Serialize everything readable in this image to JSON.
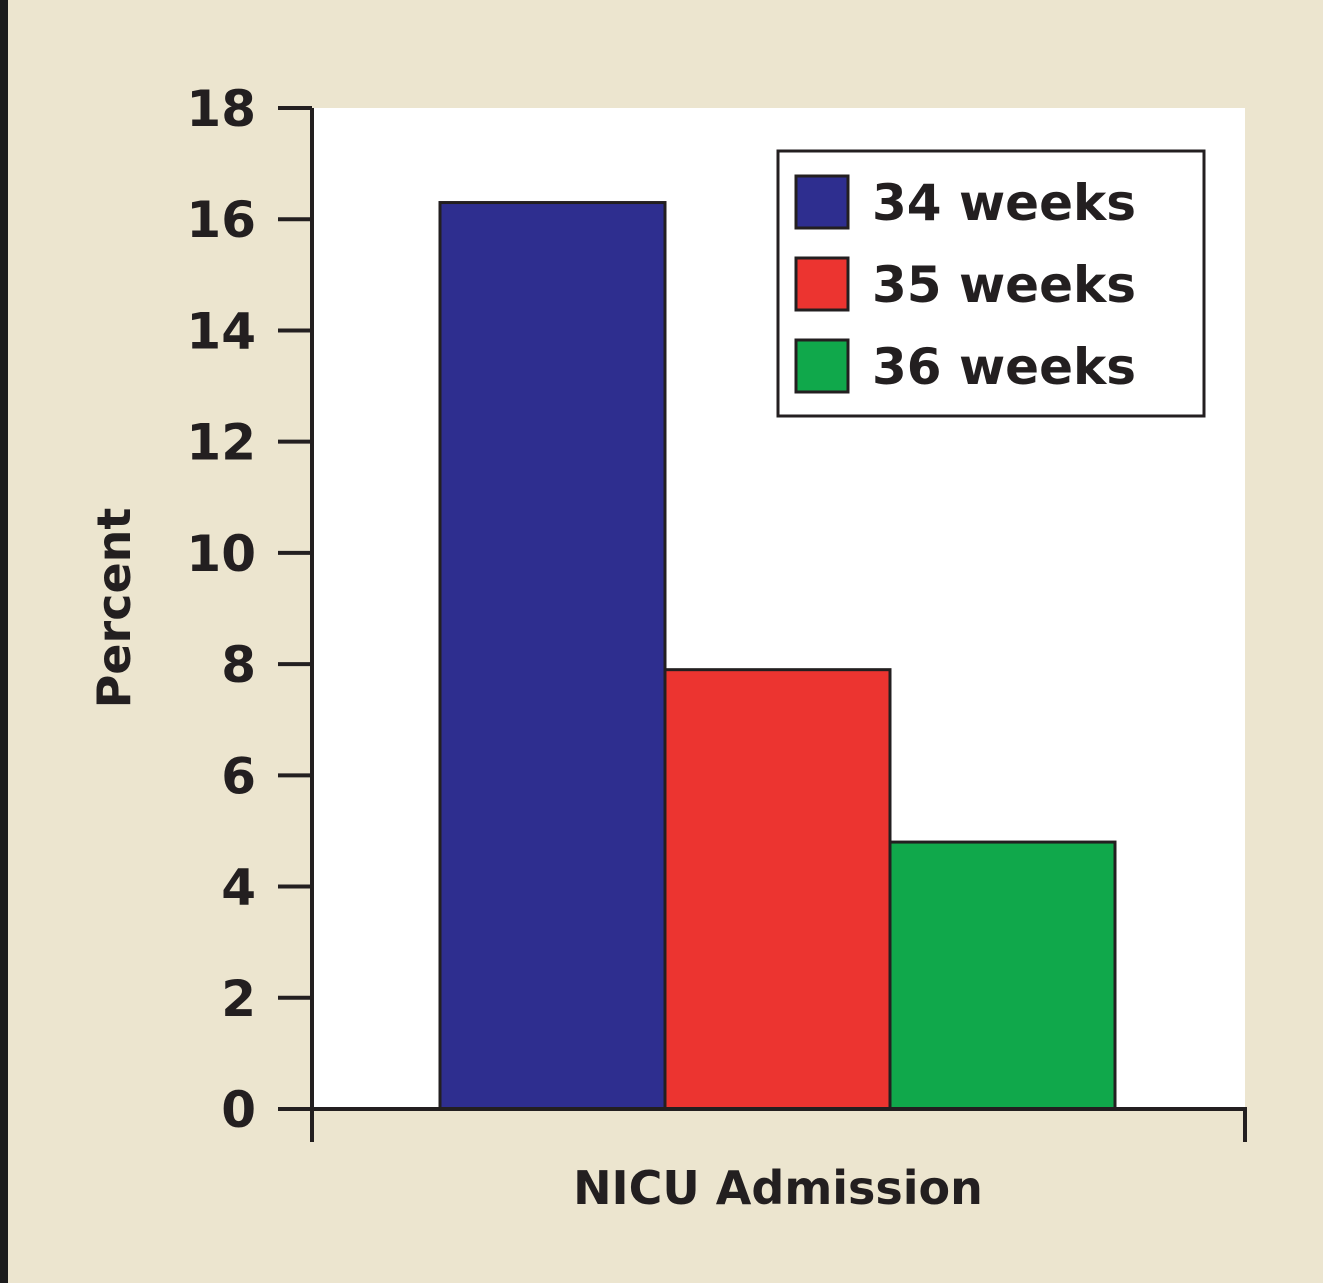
{
  "chart_data": {
    "type": "bar",
    "title": "",
    "xlabel": "NICU Admission",
    "ylabel": "Percent",
    "categories": [
      "NICU Admission"
    ],
    "series": [
      {
        "name": "34 weeks",
        "values": [
          16.3
        ],
        "color": "#2e2e8f"
      },
      {
        "name": "35 weeks",
        "values": [
          7.9
        ],
        "color": "#ec3430"
      },
      {
        "name": "36 weeks",
        "values": [
          4.8
        ],
        "color": "#10a84b"
      }
    ],
    "ylim": [
      0,
      18
    ],
    "yticks": [
      "0",
      "2",
      "4",
      "6",
      "8",
      "10",
      "12",
      "14",
      "16",
      "18"
    ],
    "grid": false,
    "legend_position": "top-right",
    "plot_background": "#ffffff",
    "page_background": "#ece5cf"
  }
}
